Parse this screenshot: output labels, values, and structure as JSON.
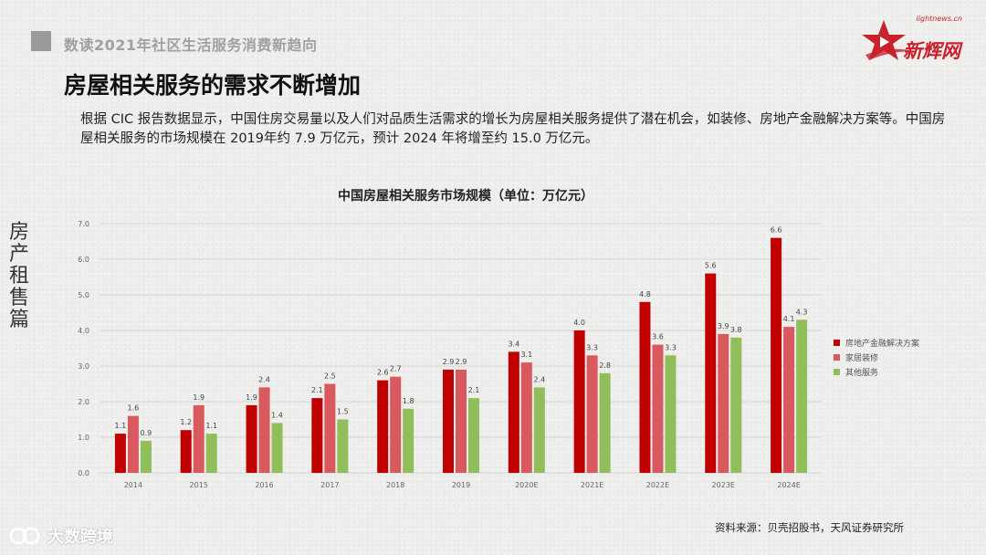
{
  "header": {
    "section_title": "数读2021年社区生活服务消费新趋向"
  },
  "logo": {
    "url_text": "lightnews.cn",
    "brand_text": "新辉网"
  },
  "main_title": "房屋相关服务的需求不断增加",
  "body_text": "根据 CIC 报告数据显示，中国住房交易量以及人们对品质生活需求的增长为房屋相关服务提供了潜在机会，如装修、房地产金融解决方案等。中国房屋相关服务的市场规模在 2019年约 7.9 万亿元，预计 2024 年将增至约 15.0 万亿元。",
  "side_label": "房产租售篇",
  "source": "资料来源：贝壳招股书，天风证券研究所",
  "watermark": "大数跨境",
  "colors": {
    "finance": "#c00000",
    "home": "#d95a5e",
    "other": "#8fbe5a"
  },
  "chart_data": {
    "type": "bar",
    "title": "中国房屋相关服务市场规模（单位：万亿元）",
    "xlabel": "",
    "ylabel": "",
    "ylim": [
      0,
      7
    ],
    "yticks": [
      "0.0",
      "1.0",
      "2.0",
      "3.0",
      "4.0",
      "5.0",
      "6.0",
      "7.0"
    ],
    "grid": true,
    "legend_position": "right",
    "categories": [
      "2014",
      "2015",
      "2016",
      "2017",
      "2018",
      "2019",
      "2020E",
      "2021E",
      "2022E",
      "2023E",
      "2024E"
    ],
    "series": [
      {
        "name": "房地产金融解决方案",
        "color": "#c00000",
        "values": [
          1.1,
          1.2,
          1.9,
          2.1,
          2.6,
          2.9,
          3.4,
          4.0,
          4.8,
          5.6,
          6.6
        ]
      },
      {
        "name": "家居装修",
        "color": "#d95a5e",
        "values": [
          1.6,
          1.9,
          2.4,
          2.5,
          2.7,
          2.9,
          3.1,
          3.3,
          3.6,
          3.9,
          4.1
        ]
      },
      {
        "name": "其他服务",
        "color": "#8fbe5a",
        "values": [
          0.9,
          1.1,
          1.4,
          1.5,
          1.8,
          2.1,
          2.4,
          2.8,
          3.3,
          3.8,
          4.3
        ]
      }
    ]
  }
}
